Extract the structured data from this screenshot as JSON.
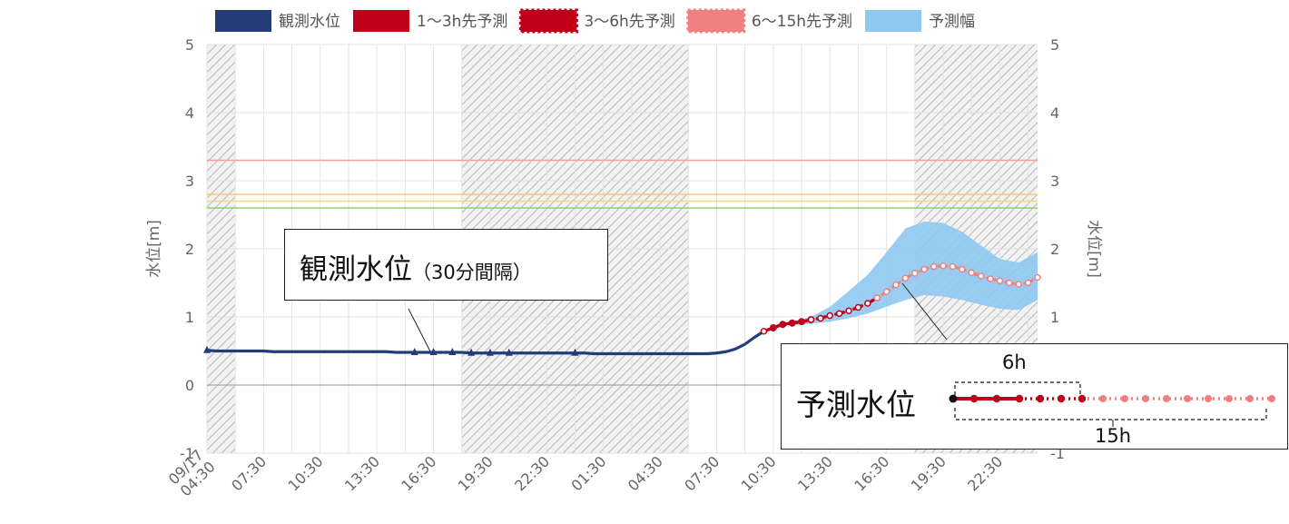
{
  "chart_data": {
    "type": "line",
    "title": "",
    "ylabel_left": "水位[m]",
    "ylabel_right": "水位[m]",
    "ylim": [
      -1,
      5
    ],
    "y_ticks": [
      "-1",
      "0",
      "1",
      "2",
      "3",
      "4",
      "5"
    ],
    "x_range_hours": [
      0,
      44
    ],
    "x_ticks": [
      {
        "h": 0,
        "label": "09/17 04:30"
      },
      {
        "h": 3,
        "label": "07:30"
      },
      {
        "h": 6,
        "label": "10:30"
      },
      {
        "h": 9,
        "label": "13:30"
      },
      {
        "h": 12,
        "label": "16:30"
      },
      {
        "h": 15,
        "label": "19:30"
      },
      {
        "h": 18,
        "label": "22:30"
      },
      {
        "h": 21,
        "label": "01:30"
      },
      {
        "h": 24,
        "label": "04:30"
      },
      {
        "h": 27,
        "label": "07:30"
      },
      {
        "h": 30,
        "label": "10:30"
      },
      {
        "h": 33,
        "label": "13:30"
      },
      {
        "h": 36,
        "label": "16:30"
      },
      {
        "h": 39,
        "label": "19:30"
      },
      {
        "h": 42,
        "label": "22:30"
      }
    ],
    "night_shading": [
      [
        0,
        1.5
      ],
      [
        13.5,
        25.5
      ],
      [
        37.5,
        44
      ]
    ],
    "threshold_lines": [
      {
        "value": 3.3,
        "color": "#f4a0a0"
      },
      {
        "value": 2.8,
        "color": "#f6c77a"
      },
      {
        "value": 2.7,
        "color": "#f0d78c"
      },
      {
        "value": 2.6,
        "color": "#90d070"
      }
    ],
    "legend": [
      {
        "label": "観測水位",
        "color": "#253c7a",
        "style": "solid"
      },
      {
        "label": "1～3h先予測",
        "color": "#c0001a",
        "style": "solid"
      },
      {
        "label": "3～6h先予測",
        "color": "#c0001a",
        "style": "dotted"
      },
      {
        "label": "6～15h先予測",
        "color": "#f08080",
        "style": "dotted"
      },
      {
        "label": "予測幅",
        "color": "#8ec8f0",
        "style": "fill"
      }
    ],
    "series": [
      {
        "name": "観測水位",
        "color": "#253c7a",
        "x": [
          0,
          0.5,
          1,
          1.5,
          2,
          2.5,
          3,
          3.5,
          4,
          4.5,
          5,
          5.5,
          6,
          6.5,
          7,
          7.5,
          8,
          8.5,
          9,
          9.5,
          10,
          10.5,
          11,
          11.5,
          12,
          12.5,
          13,
          13.5,
          14,
          14.5,
          15,
          15.5,
          16,
          16.5,
          17,
          17.5,
          18,
          18.5,
          19,
          19.5,
          20,
          20.5,
          21,
          21.5,
          22,
          22.5,
          23,
          23.5,
          24,
          24.5,
          25,
          25.5,
          26,
          26.5,
          27,
          27.5,
          28,
          28.5,
          29,
          29.5
        ],
        "values": [
          0.51,
          0.5,
          0.5,
          0.5,
          0.5,
          0.5,
          0.5,
          0.49,
          0.49,
          0.49,
          0.49,
          0.49,
          0.49,
          0.49,
          0.49,
          0.49,
          0.49,
          0.49,
          0.49,
          0.49,
          0.48,
          0.48,
          0.48,
          0.48,
          0.48,
          0.48,
          0.48,
          0.48,
          0.47,
          0.47,
          0.47,
          0.47,
          0.47,
          0.47,
          0.47,
          0.47,
          0.47,
          0.47,
          0.47,
          0.47,
          0.47,
          0.46,
          0.46,
          0.46,
          0.46,
          0.46,
          0.46,
          0.46,
          0.46,
          0.46,
          0.46,
          0.46,
          0.46,
          0.46,
          0.47,
          0.49,
          0.53,
          0.6,
          0.7,
          0.79
        ],
        "triangle_marker_x": [
          0,
          11,
          12,
          13,
          14,
          15,
          16,
          19.5
        ]
      },
      {
        "name": "1～3h先予測",
        "color": "#c0001a",
        "x": [
          29.5,
          30,
          30.5,
          31,
          31.5,
          32
        ],
        "values": [
          0.79,
          0.84,
          0.89,
          0.91,
          0.93,
          0.96
        ]
      },
      {
        "name": "3～6h先予測",
        "color": "#c0001a",
        "x": [
          32,
          32.5,
          33,
          33.5,
          34,
          34.5,
          35,
          35.5
        ],
        "values": [
          0.96,
          0.98,
          1.02,
          1.05,
          1.09,
          1.14,
          1.2,
          1.28
        ]
      },
      {
        "name": "6～15h先予測",
        "color": "#f08080",
        "x": [
          35.5,
          36,
          36.5,
          37,
          37.5,
          38,
          38.5,
          39,
          39.5,
          40,
          40.5,
          41,
          41.5,
          42,
          42.5,
          43,
          43.5,
          44
        ],
        "values": [
          1.28,
          1.37,
          1.47,
          1.57,
          1.64,
          1.7,
          1.74,
          1.75,
          1.74,
          1.7,
          1.65,
          1.6,
          1.56,
          1.53,
          1.5,
          1.48,
          1.5,
          1.58
        ]
      }
    ],
    "band": {
      "name": "予測幅",
      "color": "#8ec8f0",
      "x": [
        30,
        31,
        32,
        33,
        34,
        35,
        36,
        37,
        38,
        39,
        40,
        41,
        42,
        43,
        44
      ],
      "upper": [
        0.88,
        0.93,
        1.0,
        1.15,
        1.38,
        1.62,
        1.95,
        2.3,
        2.4,
        2.38,
        2.25,
        2.05,
        1.85,
        1.8,
        1.95
      ],
      "lower": [
        0.86,
        0.88,
        0.9,
        0.93,
        0.98,
        1.05,
        1.15,
        1.25,
        1.32,
        1.3,
        1.25,
        1.18,
        1.12,
        1.1,
        1.25
      ]
    }
  },
  "callouts": {
    "observed": {
      "title": "観測水位",
      "note": "（30分間隔）"
    },
    "prediction": {
      "title": "予測水位",
      "label_6h": "6h",
      "label_15h": "15h"
    }
  }
}
